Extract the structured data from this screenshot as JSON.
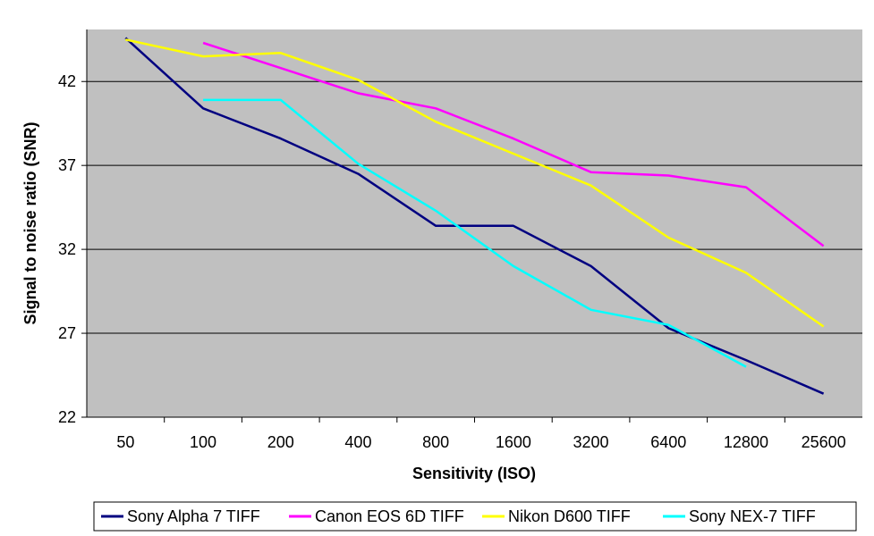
{
  "chart_data": {
    "type": "line",
    "title": "",
    "xlabel": "Sensitivity (ISO)",
    "ylabel": "Signal to noise ratio (SNR)",
    "categories": [
      "50",
      "100",
      "200",
      "400",
      "800",
      "1600",
      "3200",
      "6400",
      "12800",
      "25600"
    ],
    "yticks": [
      22,
      27,
      32,
      37,
      42
    ],
    "ylim": [
      22,
      45.1
    ],
    "grid": true,
    "plot_background": "#c0c0c0",
    "legend_position": "bottom",
    "series": [
      {
        "name": "Sony Alpha 7 TIFF",
        "color": "#000080",
        "values": [
          44.6,
          40.4,
          38.6,
          36.5,
          33.4,
          33.4,
          31.0,
          27.3,
          25.4,
          23.4
        ]
      },
      {
        "name": "Canon EOS 6D TIFF",
        "color": "#ff00ff",
        "values": [
          null,
          44.3,
          42.8,
          41.3,
          40.4,
          38.6,
          36.6,
          36.4,
          35.7,
          32.2
        ]
      },
      {
        "name": "Nikon D600 TIFF",
        "color": "#ffff00",
        "values": [
          44.5,
          43.5,
          43.7,
          42.1,
          39.6,
          37.7,
          35.8,
          32.7,
          30.6,
          27.4
        ]
      },
      {
        "name": "Sony NEX-7 TIFF",
        "color": "#00ffff",
        "values": [
          null,
          40.9,
          40.9,
          37.1,
          34.3,
          31.0,
          28.4,
          27.5,
          25.0,
          null
        ]
      }
    ]
  }
}
